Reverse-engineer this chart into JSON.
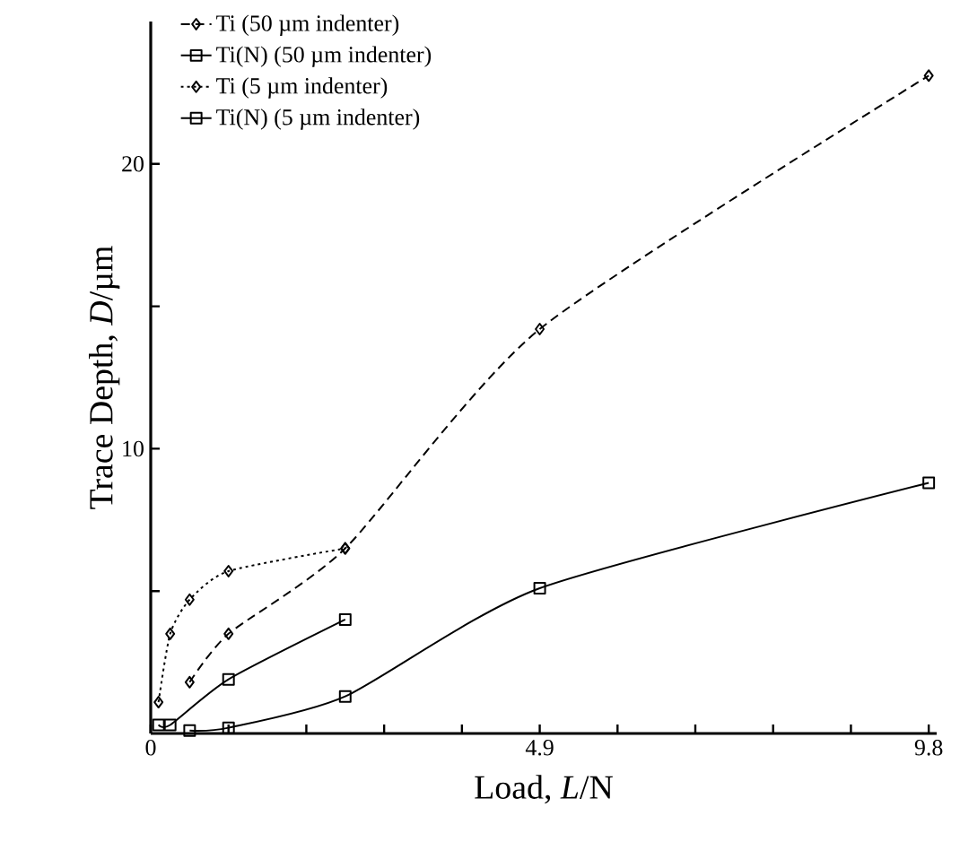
{
  "chart_data": {
    "type": "line",
    "xlabel": "Load, *L*/N",
    "ylabel": "Trace Depth, *D*/µm",
    "xlim": [
      0,
      9.9
    ],
    "ylim": [
      0,
      25
    ],
    "xticks": [
      0,
      {
        "value": 0.98,
        "label": null
      },
      {
        "value": 1.96,
        "label": null
      },
      {
        "value": 2.94,
        "label": null
      },
      {
        "value": 3.92,
        "label": null
      },
      4.9,
      {
        "value": 5.88,
        "label": null
      },
      {
        "value": 6.86,
        "label": null
      },
      {
        "value": 7.84,
        "label": null
      },
      {
        "value": 8.82,
        "label": null
      },
      9.8
    ],
    "yticks": [
      {
        "value": 5,
        "label": null
      },
      10,
      {
        "value": 15,
        "label": null
      },
      20
    ],
    "legend": "top left",
    "grid": false,
    "series": [
      {
        "name": "Ti (50 µm indenter)",
        "color": "#000000",
        "marker": "diamond",
        "line_style": "dashed",
        "x": [
          0.49,
          0.98,
          2.45,
          4.9,
          9.8
        ],
        "values": [
          1.8,
          3.5,
          6.5,
          14.2,
          23.1
        ]
      },
      {
        "name": "Ti(N) (50 µm indenter)",
        "color": "#000000",
        "marker": "square",
        "line_style": "solid",
        "x": [
          0.49,
          0.98,
          2.45,
          4.9,
          9.8
        ],
        "values": [
          0.1,
          0.2,
          1.3,
          5.1,
          8.8
        ]
      },
      {
        "name": "Ti (5 µm indenter)",
        "color": "#000000",
        "marker": "diamond",
        "line_style": "dotted",
        "x": [
          0.098,
          0.245,
          0.49,
          0.98,
          2.45
        ],
        "values": [
          1.1,
          3.5,
          4.7,
          5.7,
          6.5
        ]
      },
      {
        "name": "Ti(N) (5 µm indenter)",
        "color": "#000000",
        "marker": "square",
        "line_style": "solid",
        "x": [
          0.098,
          0.245,
          0.49,
          0.98,
          2.45
        ],
        "values": [
          0.3,
          0.3,
          null,
          1.9,
          4.0
        ]
      }
    ]
  }
}
